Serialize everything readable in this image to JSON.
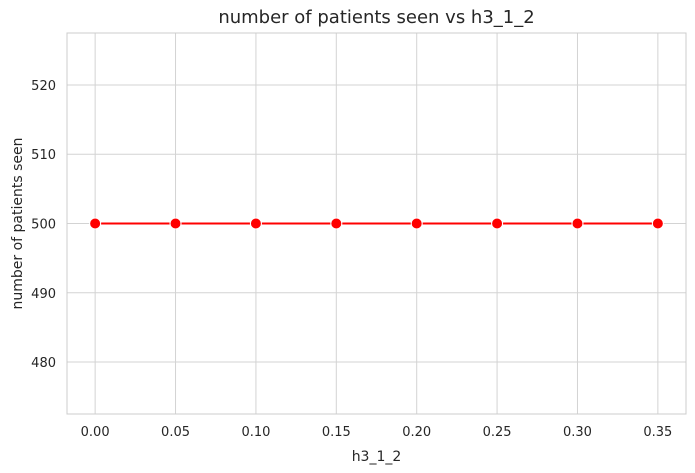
{
  "chart_data": {
    "type": "line",
    "title": "number of patients seen vs h3_1_2",
    "xlabel": "h3_1_2",
    "ylabel": "number of patients seen",
    "x": [
      0.0,
      0.05,
      0.1,
      0.15,
      0.2,
      0.25,
      0.3,
      0.35
    ],
    "series": [
      {
        "name": "number of patients seen",
        "color": "#ff0000",
        "values": [
          500,
          500,
          500,
          500,
          500,
          500,
          500,
          500
        ]
      }
    ],
    "xticks": [
      0.0,
      0.05,
      0.1,
      0.15,
      0.2,
      0.25,
      0.3,
      0.35
    ],
    "xtick_labels": [
      "0.00",
      "0.05",
      "0.10",
      "0.15",
      "0.20",
      "0.25",
      "0.30",
      "0.35"
    ],
    "yticks": [
      480,
      490,
      500,
      510,
      520
    ],
    "ytick_labels": [
      "480",
      "490",
      "500",
      "510",
      "520"
    ],
    "xlim": [
      -0.0175,
      0.3675
    ],
    "ylim": [
      472.5,
      527.5
    ],
    "grid": true
  }
}
